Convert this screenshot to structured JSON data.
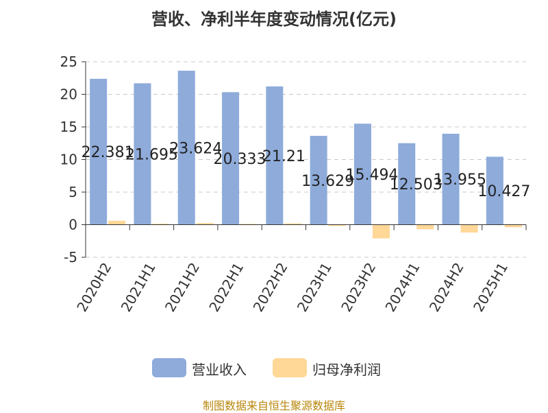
{
  "title": "营收、净利半年度变动情况(亿元)",
  "source": "制图数据来自恒生聚源数据库",
  "legend": [
    {
      "label": "营业收入",
      "color": "#8eabda"
    },
    {
      "label": "归母净利润",
      "color": "#ffd796"
    }
  ],
  "chart_data": {
    "type": "bar",
    "categories": [
      "2020H2",
      "2021H1",
      "2021H2",
      "2022H1",
      "2022H2",
      "2023H1",
      "2023H2",
      "2024H1",
      "2024H2",
      "2025H1"
    ],
    "series": [
      {
        "name": "营业收入",
        "color": "#8eabda",
        "values": [
          22.381,
          21.695,
          23.624,
          20.333,
          21.21,
          13.629,
          15.494,
          12.503,
          13.955,
          10.427
        ],
        "labels": [
          "22.381",
          "21.695",
          "23.624",
          "20.333",
          "21.21",
          "13.629",
          "15.494",
          "12.503",
          "13.955",
          "10.427"
        ]
      },
      {
        "name": "归母净利润",
        "color": "#ffd796",
        "values": [
          0.6,
          0.15,
          0.25,
          0.12,
          0.2,
          -0.2,
          -2.1,
          -0.7,
          -1.2,
          -0.4
        ]
      }
    ],
    "yticks": [
      -5,
      0,
      5,
      10,
      15,
      20,
      25
    ],
    "ylim": [
      -5,
      25
    ],
    "grid": true,
    "legend_position": "bottom"
  }
}
